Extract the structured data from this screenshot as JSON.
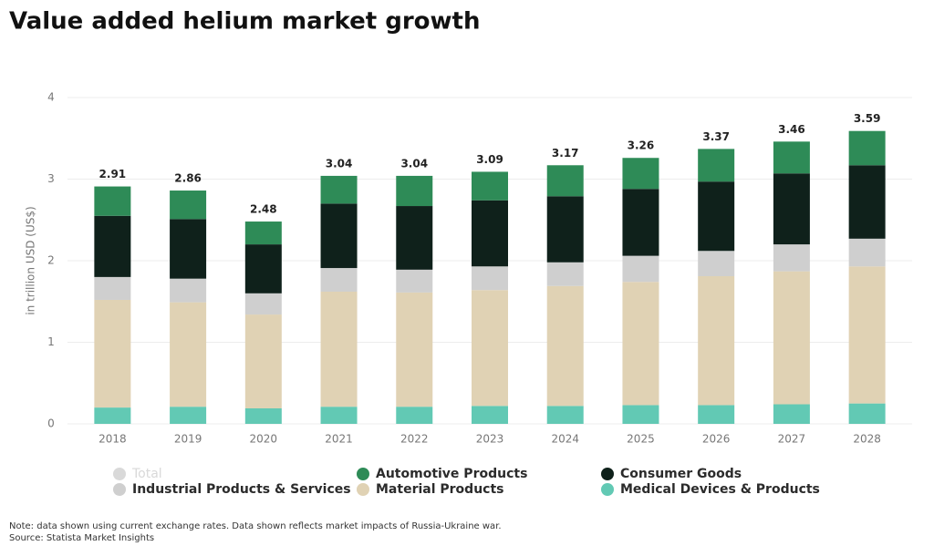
{
  "chart_data": {
    "type": "stacked_bar",
    "title": "Value added helium market growth",
    "y_label": "in trillion USD (US$)",
    "categories": [
      "2018",
      "2019",
      "2020",
      "2021",
      "2022",
      "2023",
      "2024",
      "2025",
      "2026",
      "2027",
      "2028"
    ],
    "series": [
      {
        "name": "Automotive Products",
        "color": "#2e8b57",
        "values": [
          0.36,
          0.35,
          0.28,
          0.34,
          0.37,
          0.35,
          0.38,
          0.38,
          0.4,
          0.39,
          0.42
        ]
      },
      {
        "name": "Consumer Goods",
        "color": "#0f211b",
        "values": [
          0.75,
          0.73,
          0.6,
          0.79,
          0.78,
          0.81,
          0.81,
          0.82,
          0.85,
          0.87,
          0.9
        ]
      },
      {
        "name": "Industrial Products & Services",
        "color": "#cfcfcf",
        "values": [
          0.28,
          0.29,
          0.26,
          0.29,
          0.28,
          0.29,
          0.29,
          0.32,
          0.31,
          0.33,
          0.34
        ]
      },
      {
        "name": "Material Products",
        "color": "#e0d2b4",
        "values": [
          1.32,
          1.28,
          1.15,
          1.41,
          1.4,
          1.42,
          1.47,
          1.51,
          1.58,
          1.63,
          1.68
        ]
      },
      {
        "name": "Medical Devices & Products",
        "color": "#62c9b4",
        "values": [
          0.2,
          0.21,
          0.19,
          0.21,
          0.21,
          0.22,
          0.22,
          0.23,
          0.23,
          0.24,
          0.25
        ]
      }
    ],
    "totals": {
      "name": "Total",
      "color": "#d9d9d9",
      "values": [
        2.91,
        2.86,
        2.48,
        3.04,
        3.04,
        3.09,
        3.17,
        3.26,
        3.37,
        3.46,
        3.59
      ]
    },
    "ylim": [
      0,
      4
    ],
    "yticks": [
      0,
      1,
      2,
      3,
      4
    ],
    "grid": true,
    "note": "Note: data shown using current exchange rates. Data shown reflects market impacts of Russia-Ukraine war.",
    "source": "Source: Statista Market Insights"
  }
}
